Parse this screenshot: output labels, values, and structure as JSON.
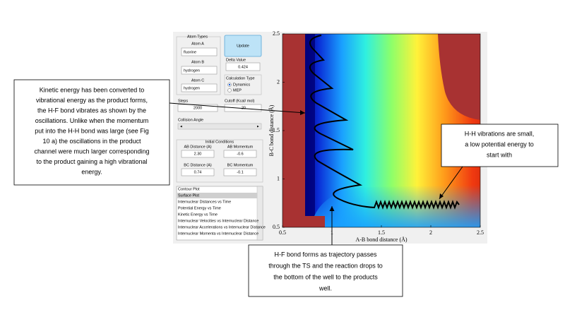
{
  "controls": {
    "atom_types": "Atom Types",
    "atom_a_label": "Atom A",
    "atom_a": "fluorine",
    "atom_b_label": "Atom B",
    "atom_b": "hydrogen",
    "atom_c_label": "Atom C",
    "atom_c": "hydrogen",
    "update": "Update",
    "delta_label": "Delta Value",
    "delta": "0.424",
    "calc_label": "Calculation Type",
    "calc_options": [
      "Dynamics",
      "MEP"
    ],
    "steps_label": "Steps",
    "steps": "2000",
    "cutoff_label": "Cutoff (Kcal/ mol)",
    "cutoff": "-20",
    "angle_label": "Collision Angle",
    "initial_label": "Initial Conditions",
    "ab_dist_label": "AB Distance (A)",
    "ab_dist": "2.30",
    "ab_mom_label": "AB Momentum",
    "ab_mom": "-0.6",
    "bc_dist_label": "BC Distance (A)",
    "bc_dist": "0.74",
    "bc_mom_label": "BC Momentum",
    "bc_mom": "-0.1",
    "plot_list": [
      "Contour Plot",
      "Surface Plot",
      "Internuclear Distances vs Time",
      "Potential Energy vs Time",
      "Kinetic Energy vs Time",
      "Internuclear Velocities vs Internuclear Distance",
      "Internuclear Accelerations vs Internuclear Distance",
      "Internuclear Momenta vs Internuclear Distance"
    ]
  },
  "plot": {
    "x_label": "A-B bond distance (Å)",
    "y_label": "B-C bond distance (Å)",
    "x_ticks": [
      "0.5",
      "1",
      "1.5",
      "2",
      "2.5"
    ],
    "y_ticks": [
      "0.5",
      "1",
      "1.5",
      "2",
      "2.5"
    ]
  },
  "notes": {
    "left": [
      "Kinetic energy has been converted to",
      "vibrational energy as the product forms,",
      "the H-F bond vibrates as shown by the",
      "oscillations. Unlike when the momentum",
      "put into the H-H bond was large (see Fig",
      "10 a) the oscillations in the product",
      "channel were much larger corresponding",
      "to the product gaining a high vibrational",
      "energy."
    ],
    "right": [
      "H-H vibrations are small,",
      "a low potential energy to",
      "start with"
    ],
    "bottom": [
      "H-F bond forms as trajectory passes",
      "through the TS and the reaction drops to",
      "the bottom of the well to the products",
      "well."
    ]
  }
}
